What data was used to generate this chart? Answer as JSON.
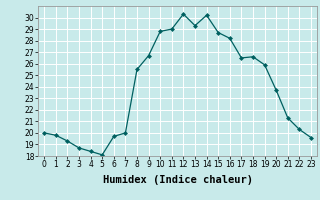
{
  "x": [
    0,
    1,
    2,
    3,
    4,
    5,
    6,
    7,
    8,
    9,
    10,
    11,
    12,
    13,
    14,
    15,
    16,
    17,
    18,
    19,
    20,
    21,
    22,
    23
  ],
  "y": [
    20,
    19.8,
    19.3,
    18.7,
    18.4,
    18.1,
    19.7,
    20.0,
    25.5,
    26.7,
    28.8,
    29.0,
    30.3,
    29.3,
    30.2,
    28.7,
    28.2,
    26.5,
    26.6,
    25.9,
    23.7,
    21.3,
    20.3,
    19.6
  ],
  "line_color": "#006060",
  "marker": "D",
  "marker_size": 2,
  "bg_color": "#c8eaea",
  "grid_color": "#ffffff",
  "xlabel": "Humidex (Indice chaleur)",
  "ylim": [
    18,
    31
  ],
  "xlim": [
    -0.5,
    23.5
  ],
  "yticks": [
    18,
    19,
    20,
    21,
    22,
    23,
    24,
    25,
    26,
    27,
    28,
    29,
    30
  ],
  "xticks": [
    0,
    1,
    2,
    3,
    4,
    5,
    6,
    7,
    8,
    9,
    10,
    11,
    12,
    13,
    14,
    15,
    16,
    17,
    18,
    19,
    20,
    21,
    22,
    23
  ],
  "xtick_labels": [
    "0",
    "1",
    "2",
    "3",
    "4",
    "5",
    "6",
    "7",
    "8",
    "9",
    "10",
    "11",
    "12",
    "13",
    "14",
    "15",
    "16",
    "17",
    "18",
    "19",
    "20",
    "21",
    "22",
    "23"
  ],
  "ytick_labels": [
    "18",
    "19",
    "20",
    "21",
    "22",
    "23",
    "24",
    "25",
    "26",
    "27",
    "28",
    "29",
    "30"
  ],
  "tick_fontsize": 5.5,
  "xlabel_fontsize": 7.5
}
